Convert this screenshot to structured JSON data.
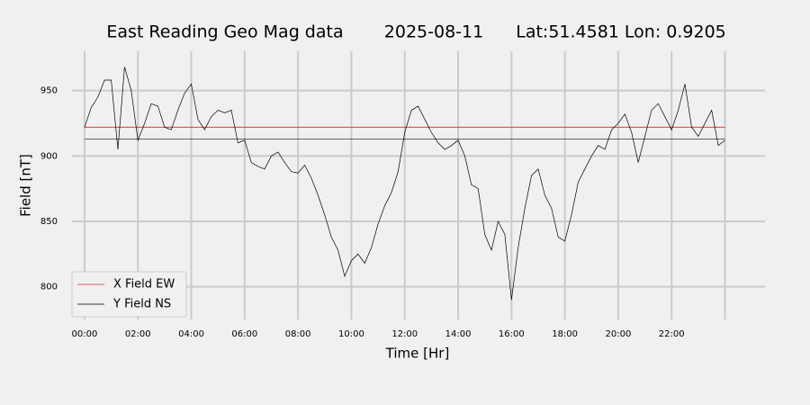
{
  "chart_data": {
    "type": "line",
    "title": "East Reading Geo Mag data",
    "date": "2025-08-11",
    "location": "Lat:51.4581  Lon: 0.9205",
    "x_label": "Time  [Hr]",
    "y_label": "Field  [nT]",
    "xlim": [
      -0.47,
      25.5
    ],
    "ylim": [
      775,
      980
    ],
    "xticks": [
      {
        "value": 0,
        "label": "00:00"
      },
      {
        "value": 2,
        "label": "02:00"
      },
      {
        "value": 4,
        "label": "04:00"
      },
      {
        "value": 6,
        "label": "06:00"
      },
      {
        "value": 8,
        "label": "08:00"
      },
      {
        "value": 10,
        "label": "10:00"
      },
      {
        "value": 12,
        "label": "12:00"
      },
      {
        "value": 14,
        "label": "14:00"
      },
      {
        "value": 16,
        "label": "16:00"
      },
      {
        "value": 18,
        "label": "18:00"
      },
      {
        "value": 20,
        "label": "20:00"
      },
      {
        "value": 22,
        "label": "22:00"
      },
      {
        "value": 24,
        "label": null
      }
    ],
    "yticks": [
      800,
      850,
      900,
      950
    ],
    "grid": true,
    "legend": "lower left",
    "series": [
      {
        "name": "X Field EW",
        "color": "#d62728",
        "x": [
          0,
          24
        ],
        "values": [
          922,
          922
        ]
      },
      {
        "color": "#333333",
        "x": [
          0,
          24
        ],
        "values": [
          913,
          913
        ]
      },
      {
        "name": "Y Field NS",
        "color": "#000000",
        "x": [
          0,
          0.25,
          0.5,
          0.75,
          1,
          1.25,
          1.5,
          1.75,
          2,
          2.25,
          2.5,
          2.75,
          3,
          3.25,
          3.5,
          3.75,
          4,
          4.25,
          4.5,
          4.75,
          5,
          5.25,
          5.5,
          5.75,
          6,
          6.25,
          6.5,
          6.75,
          7,
          7.25,
          7.5,
          7.75,
          8,
          8.25,
          8.5,
          8.75,
          9,
          9.25,
          9.5,
          9.75,
          10,
          10.25,
          10.5,
          10.75,
          11,
          11.25,
          11.5,
          11.75,
          12,
          12.25,
          12.5,
          12.75,
          13,
          13.25,
          13.5,
          13.75,
          14,
          14.25,
          14.5,
          14.75,
          15,
          15.25,
          15.5,
          15.75,
          16,
          16.25,
          16.5,
          16.75,
          17,
          17.25,
          17.5,
          17.75,
          18,
          18.25,
          18.5,
          18.75,
          19,
          19.25,
          19.5,
          19.75,
          20,
          20.25,
          20.5,
          20.75,
          21,
          21.25,
          21.5,
          21.75,
          22,
          22.25,
          22.5,
          22.75,
          23,
          23.25,
          23.5,
          23.75,
          24
        ],
        "values": [
          922,
          937,
          945,
          958,
          958,
          905,
          968,
          950,
          912,
          925,
          940,
          938,
          922,
          920,
          935,
          948,
          955,
          928,
          920,
          930,
          935,
          933,
          935,
          910,
          912,
          895,
          892,
          890,
          900,
          903,
          895,
          888,
          887,
          893,
          883,
          870,
          855,
          838,
          828,
          808,
          820,
          825,
          818,
          830,
          848,
          862,
          872,
          888,
          918,
          935,
          938,
          928,
          918,
          910,
          905,
          908,
          912,
          900,
          878,
          875,
          840,
          828,
          850,
          840,
          790,
          830,
          860,
          885,
          890,
          870,
          860,
          838,
          835,
          855,
          880,
          890,
          900,
          908,
          905,
          920,
          925,
          932,
          918,
          895,
          915,
          935,
          940,
          930,
          920,
          935,
          955,
          922,
          915,
          925,
          935,
          908,
          912
        ]
      }
    ]
  }
}
